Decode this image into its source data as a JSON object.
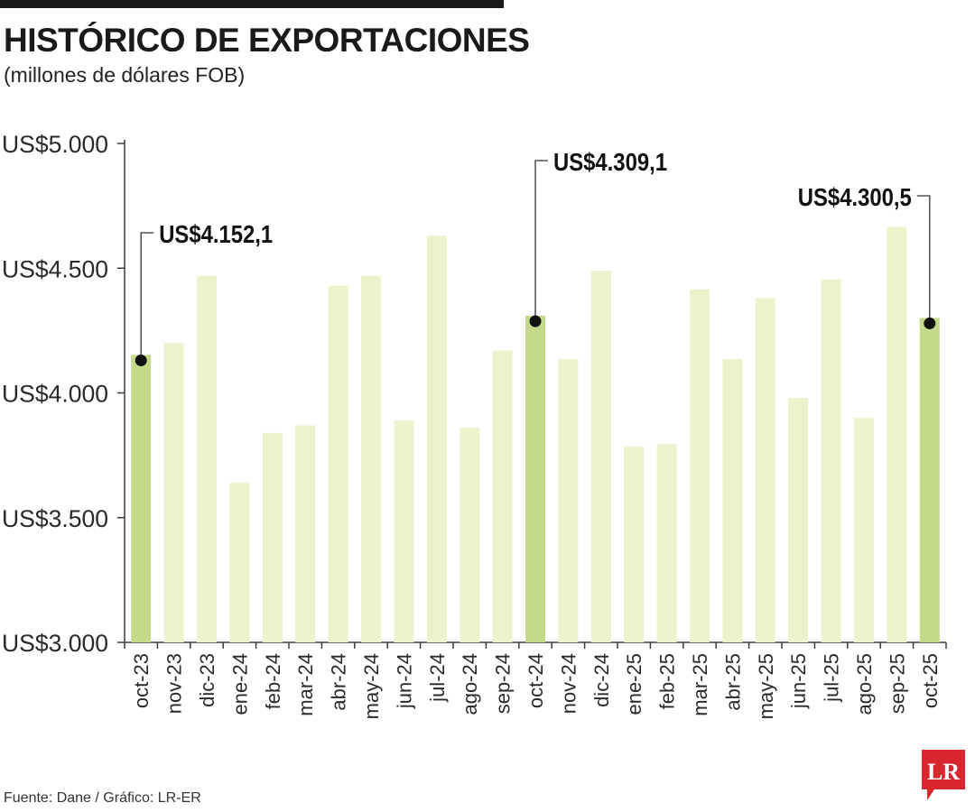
{
  "header": {
    "title": "HISTÓRICO DE EXPORTACIONES",
    "subtitle": "(millones de dólares FOB)"
  },
  "footer": {
    "source": "Fuente: Dane / Gráfico: LR-ER",
    "logo_text": "LR"
  },
  "colors": {
    "bar": "#eef2cc",
    "bar_highlight": "#c4da8a",
    "axis": "#3a3a3a",
    "text": "#1a1a1a",
    "logo": "#d7262d"
  },
  "chart_data": {
    "type": "bar",
    "title": "HISTÓRICO DE EXPORTACIONES",
    "subtitle": "(millones de dólares FOB)",
    "xlabel": "",
    "ylabel": "",
    "ylim": [
      3000,
      5000
    ],
    "yticks": [
      3000,
      3500,
      4000,
      4500,
      5000
    ],
    "ytick_labels": [
      "US$3.000",
      "US$3.500",
      "US$4.000",
      "US$4.500",
      "US$5.000"
    ],
    "grid": false,
    "categories": [
      "oct-23",
      "nov-23",
      "dic-23",
      "ene-24",
      "feb-24",
      "mar-24",
      "abr-24",
      "may-24",
      "jun-24",
      "jul-24",
      "ago-24",
      "sep-24",
      "oct-24",
      "nov-24",
      "dic-24",
      "ene-25",
      "feb-25",
      "mar-25",
      "abr-25",
      "may-25",
      "jun-25",
      "jul-25",
      "ago-25",
      "sep-25",
      "oct-25"
    ],
    "values": [
      4152.1,
      4200,
      4470,
      3640,
      3840,
      3870,
      4430,
      4470,
      3890,
      4630,
      3860,
      4170,
      4309.1,
      4135,
      4490,
      3785,
      3795,
      4415,
      4135,
      4380,
      3980,
      4455,
      3900,
      4665,
      4300.5
    ],
    "highlighted": [
      0,
      12,
      24
    ],
    "annotations": [
      {
        "index": 0,
        "label": "US$4.152,1"
      },
      {
        "index": 12,
        "label": "US$4.309,1"
      },
      {
        "index": 24,
        "label": "US$4.300,5"
      }
    ]
  }
}
